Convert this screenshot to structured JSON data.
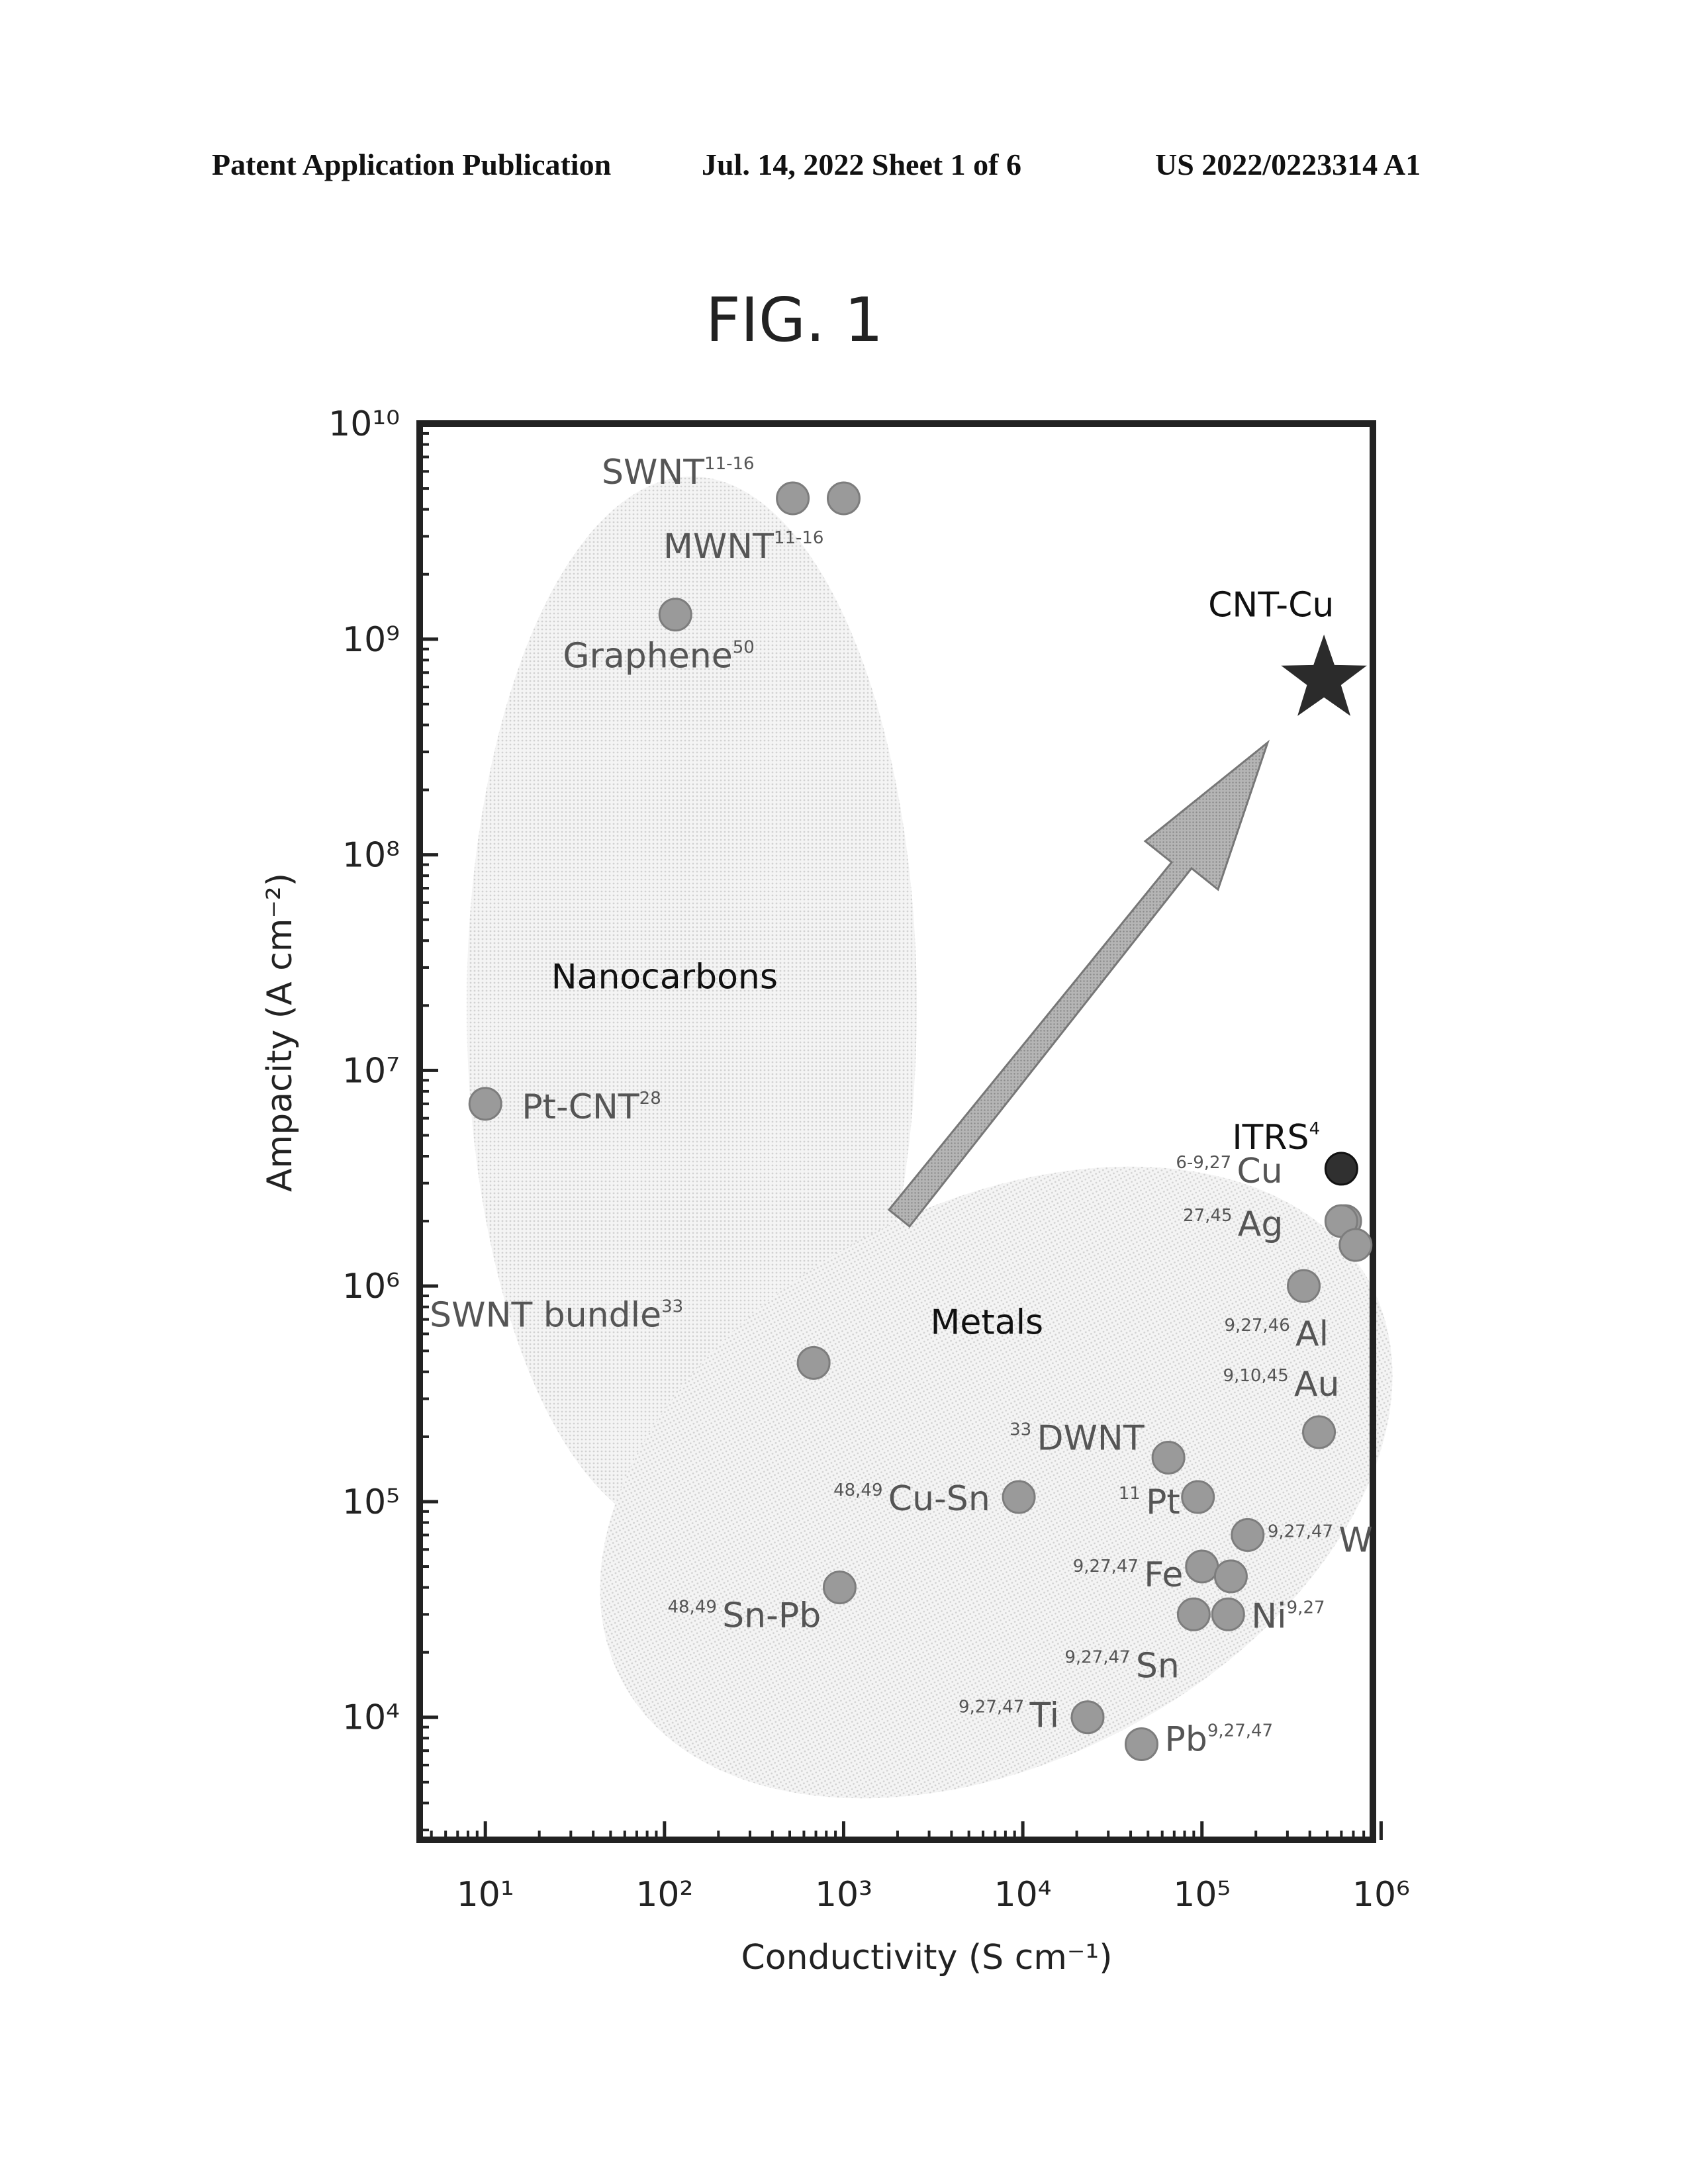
{
  "header": {
    "left": "Patent Application Publication",
    "middle": "Jul. 14, 2022   Sheet 1 of 6",
    "right": "US 2022/0223314 A1"
  },
  "figure_title": "FIG. 1",
  "chart_data": {
    "type": "scatter",
    "title": "",
    "xlabel": "Conductivity (S cm⁻¹)",
    "ylabel": "Ampacity (A cm⁻²)",
    "x_scale": "log",
    "y_scale": "log",
    "xlim": [
      4.3,
      900000
    ],
    "ylim": [
      2700,
      10000000000
    ],
    "x_ticks": [
      {
        "value": 10,
        "label": "10¹"
      },
      {
        "value": 100,
        "label": "10²"
      },
      {
        "value": 1000,
        "label": "10³"
      },
      {
        "value": 10000,
        "label": "10⁴"
      },
      {
        "value": 100000,
        "label": "10⁵"
      },
      {
        "value": 1000000,
        "label": "10⁶"
      }
    ],
    "y_ticks": [
      {
        "value": 10000,
        "label": "10⁴"
      },
      {
        "value": 100000,
        "label": "10⁵"
      },
      {
        "value": 1000000,
        "label": "10⁶"
      },
      {
        "value": 10000000,
        "label": "10⁷"
      },
      {
        "value": 100000000,
        "label": "10⁸"
      },
      {
        "value": 1000000000,
        "label": "10⁹"
      },
      {
        "value": 10000000000,
        "label": "10¹⁰"
      }
    ],
    "regions": [
      {
        "label": "Nanocarbons",
        "label_x": 100,
        "label_y": 24000000
      },
      {
        "label": "Metals",
        "label_x": 6300,
        "label_y": 600000
      }
    ],
    "points": [
      {
        "name": "SWNT",
        "ref": "11-16",
        "x": 520,
        "y": 4500000000,
        "marker": "circle"
      },
      {
        "name": "MWNT",
        "ref": "11-16",
        "x": 1000,
        "y": 4500000000,
        "marker": "circle"
      },
      {
        "name": "Graphene",
        "ref": "50",
        "x": 115,
        "y": 1300000000,
        "marker": "circle"
      },
      {
        "name": "Pt-CNT",
        "ref": "28",
        "x": 10,
        "y": 7000000,
        "marker": "circle"
      },
      {
        "name": "SWNT bundle",
        "ref": "33",
        "x": 680,
        "y": 440000,
        "marker": "circle"
      },
      {
        "name": "Cu-Sn",
        "ref": "48,49",
        "x": 9500,
        "y": 105000,
        "marker": "circle"
      },
      {
        "name": "Sn-Pb",
        "ref": "48,49",
        "x": 950,
        "y": 40000,
        "marker": "circle"
      },
      {
        "name": "DWNT",
        "ref": "33",
        "x": 65000,
        "y": 160000,
        "marker": "circle"
      },
      {
        "name": "Pt",
        "ref": "11",
        "x": 95000,
        "y": 105000,
        "marker": "circle"
      },
      {
        "name": "W",
        "ref": "9,27,47",
        "x": 180000,
        "y": 70000,
        "marker": "circle"
      },
      {
        "name": "Fe",
        "ref": "9,27,47",
        "x": 100000,
        "y": 50000,
        "marker": "circle"
      },
      {
        "name": "Fe (2)",
        "ref": "",
        "x": 145000,
        "y": 45000,
        "marker": "circle"
      },
      {
        "name": "Ni",
        "ref": "9,27",
        "x": 140000,
        "y": 30000,
        "marker": "circle"
      },
      {
        "name": "Sn",
        "ref": "9,27,47",
        "x": 90000,
        "y": 30000,
        "marker": "circle"
      },
      {
        "name": "Ti",
        "ref": "9,27,47",
        "x": 23000,
        "y": 10000,
        "marker": "circle"
      },
      {
        "name": "Pb",
        "ref": "9,27,47",
        "x": 46000,
        "y": 7500,
        "marker": "circle"
      },
      {
        "name": "Au",
        "ref": "9,10,45",
        "x": 450000,
        "y": 210000,
        "marker": "circle"
      },
      {
        "name": "Al",
        "ref": "9,27,46",
        "x": 370000,
        "y": 1000000,
        "marker": "circle"
      },
      {
        "name": "Ag",
        "ref": "27,45",
        "x": 630000,
        "y": 2000000,
        "marker": "circle"
      },
      {
        "name": "Cu",
        "ref": "6-9,27",
        "x": 600000,
        "y": 2000000,
        "marker": "circle"
      },
      {
        "name": "Cu (2)",
        "ref": "",
        "x": 720000,
        "y": 1550000,
        "marker": "circle"
      },
      {
        "name": "ITRS",
        "ref": "4",
        "x": 600000,
        "y": 3500000,
        "marker": "circle-dark"
      },
      {
        "name": "CNT-Cu",
        "ref": "",
        "x": 480000,
        "y": 650000000,
        "marker": "star"
      }
    ],
    "arrow": {
      "from": {
        "x": 2400,
        "y": 1700000
      },
      "to": {
        "x": 280000,
        "y": 350000000
      }
    },
    "legend": "none",
    "grid": false
  }
}
